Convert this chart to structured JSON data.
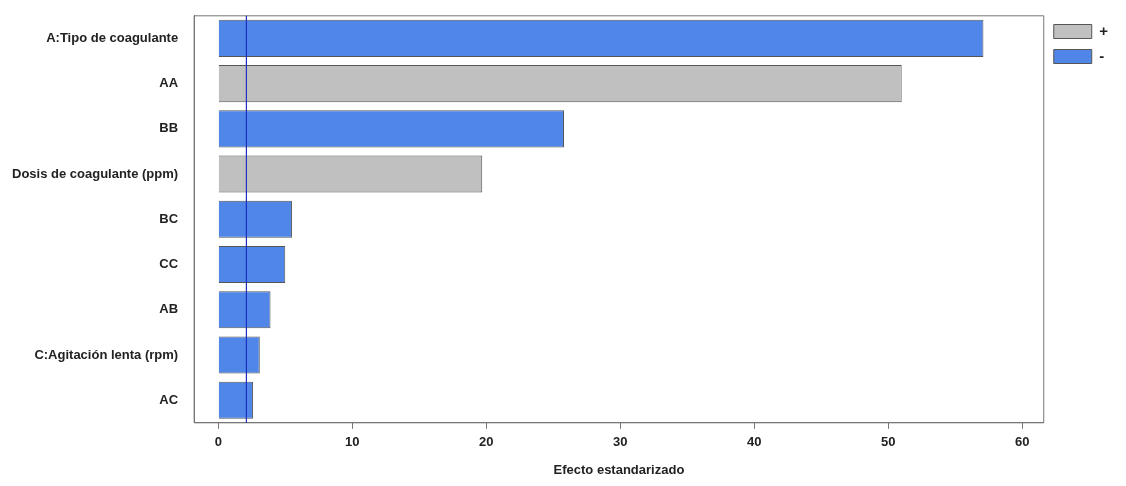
{
  "chart_data": {
    "type": "bar",
    "orientation": "horizontal",
    "xlabel": "Efecto estandarizado",
    "categories": [
      "A:Tipo de coagulante",
      "AA",
      "BB",
      "Dosis de coagulante (ppm)",
      "BC",
      "CC",
      "AB",
      "C:Agitación lenta (rpm)",
      "AC"
    ],
    "series": [
      {
        "name": "+",
        "color": "#c0c0c0",
        "values": [
          null,
          51.0,
          null,
          19.7,
          null,
          null,
          null,
          null,
          null
        ]
      },
      {
        "name": "-",
        "color": "#4f86e8",
        "values": [
          57.1,
          null,
          25.8,
          null,
          5.5,
          5.0,
          3.9,
          3.1,
          2.6
        ]
      }
    ],
    "xlim": [
      -1.8,
      61.6
    ],
    "xticks": [
      0,
      10,
      20,
      30,
      40,
      50,
      60
    ],
    "ref_lines": [
      {
        "axis": "x",
        "value": 2.1,
        "color": "#1f2fbf"
      }
    ],
    "grid": false,
    "legend": "top right"
  }
}
